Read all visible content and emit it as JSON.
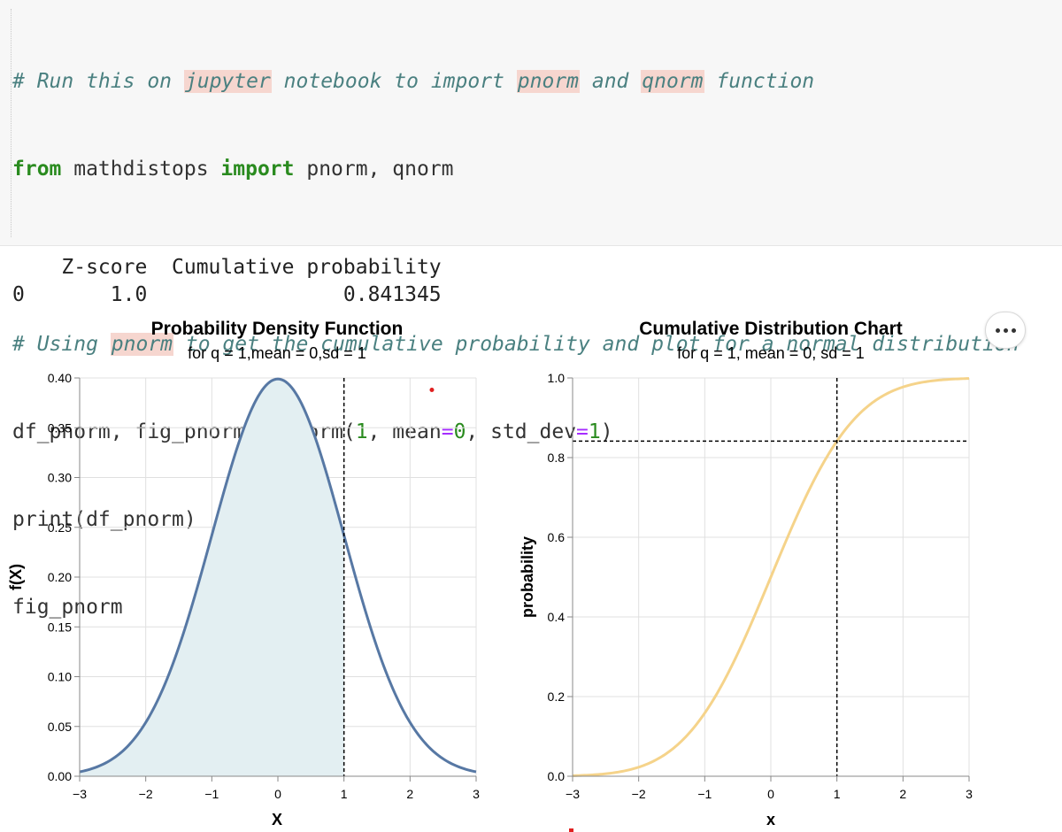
{
  "code_cell": {
    "line1": {
      "parts": [
        "# Run this on ",
        "jupyter",
        " notebook to import ",
        "pnorm",
        " and ",
        "qnorm",
        " function"
      ]
    },
    "line2": {
      "from": "from",
      "module": " mathdistops ",
      "import": "import",
      "names": " pnorm, qnorm"
    },
    "line4": {
      "parts": [
        "# Using ",
        "pnorm",
        " to get the cumulative probability and plot for a normal distribution"
      ]
    },
    "line5": {
      "lhs": "df_pnorm, fig_pnorm ",
      "eq": "=",
      "call": " pnorm(",
      "arg1": "1",
      "sep1": ", mean",
      "eq2": "=",
      "arg2": "0",
      "sep2": ", std_dev",
      "eq3": "=",
      "arg3": "1",
      "close": ")"
    },
    "line6": "print(df_pnorm)",
    "line7": "fig_pnorm"
  },
  "output": {
    "header": "    Z-score  Cumulative probability",
    "row": "0       1.0                0.841345"
  },
  "menu_button": {
    "icon": "ellipsis-icon"
  },
  "colors": {
    "pdf_line": "#5778a4",
    "pdf_fill": "#e3eff2",
    "cdf_line": "#f5d38a",
    "grid": "#e0e0e0",
    "marker": "#e02020"
  },
  "chart_data": [
    {
      "type": "area",
      "title": "Probability Density Function",
      "subtitle": "for q = 1,mean = 0,sd = 1",
      "xlabel": "X",
      "ylabel": "f(X)",
      "xlim": [
        -3,
        3
      ],
      "ylim": [
        0,
        0.4
      ],
      "x_ticks": [
        "−3",
        "−2",
        "−1",
        "0",
        "1",
        "2",
        "3"
      ],
      "y_ticks": [
        "0.00",
        "0.05",
        "0.10",
        "0.15",
        "0.20",
        "0.25",
        "0.30",
        "0.35",
        "0.40"
      ],
      "mean": 0,
      "sd": 1,
      "q": 1,
      "shaded_range": [
        -3,
        1
      ],
      "vertical_rule_x": 1,
      "marker_point": [
        2.33,
        0.388
      ],
      "grid": true
    },
    {
      "type": "line",
      "title": "Cumulative Distribution Chart",
      "subtitle": "for q = 1, mean = 0, sd = 1",
      "xlabel": "x",
      "ylabel": "probability",
      "xlim": [
        -3,
        3
      ],
      "ylim": [
        0,
        1
      ],
      "x_ticks": [
        "−3",
        "−2",
        "−1",
        "0",
        "1",
        "2",
        "3"
      ],
      "y_ticks": [
        "0.0",
        "0.2",
        "0.4",
        "0.6",
        "0.8",
        "1.0"
      ],
      "mean": 0,
      "sd": 1,
      "q": 1,
      "vertical_rule_x": 1,
      "horizontal_rule_y": 0.841345,
      "grid": true
    }
  ]
}
